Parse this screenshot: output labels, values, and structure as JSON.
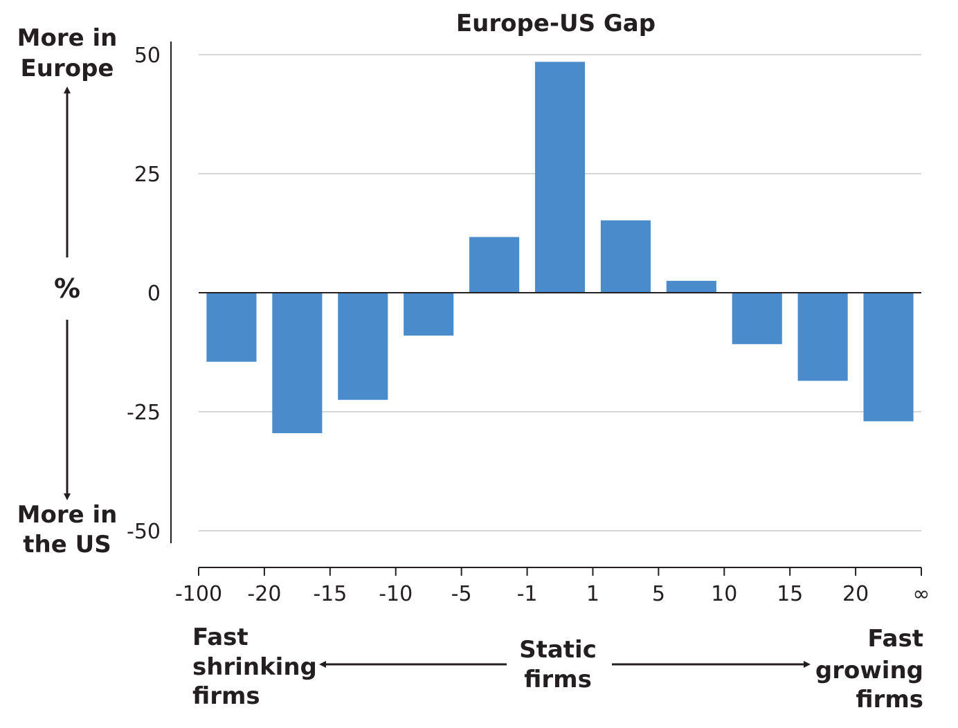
{
  "chart_data": {
    "type": "bar",
    "title": "Europe-US Gap",
    "ylabel": "%",
    "ylim": [
      -50,
      50
    ],
    "yticks": [
      50,
      25,
      0,
      -25,
      -50
    ],
    "ytick_labels": [
      "50",
      "25",
      "0",
      "-25",
      "-50"
    ],
    "x_edge_labels": [
      "-100",
      "-20",
      "-15",
      "-10",
      "-5",
      "-1",
      "1",
      "5",
      "10",
      "15",
      "20",
      "∞"
    ],
    "categories": [
      "-100 to -20",
      "-20 to -15",
      "-15 to -10",
      "-10 to -5",
      "-5 to -1",
      "-1 to 1",
      "1 to 5",
      "5 to 10",
      "10 to 15",
      "15 to 20",
      "20 to ∞"
    ],
    "values": [
      -14.5,
      -29.5,
      -22.5,
      -9,
      11.7,
      48.5,
      15.2,
      2.5,
      -10.8,
      -18.5,
      -27
    ],
    "bar_color": "#4a8ccb",
    "grid": true,
    "y_annotations": {
      "top_line1": "More in",
      "top_line2": "Europe",
      "bottom_line1": "More in",
      "bottom_line2": "the US"
    },
    "x_annotations": {
      "left_line1": "Fast",
      "left_line2": "shrinking",
      "left_line3": "firms",
      "center_line1": "Static",
      "center_line2": "firms",
      "right_line1": "Fast",
      "right_line2": "growing",
      "right_line3": "firms"
    }
  }
}
